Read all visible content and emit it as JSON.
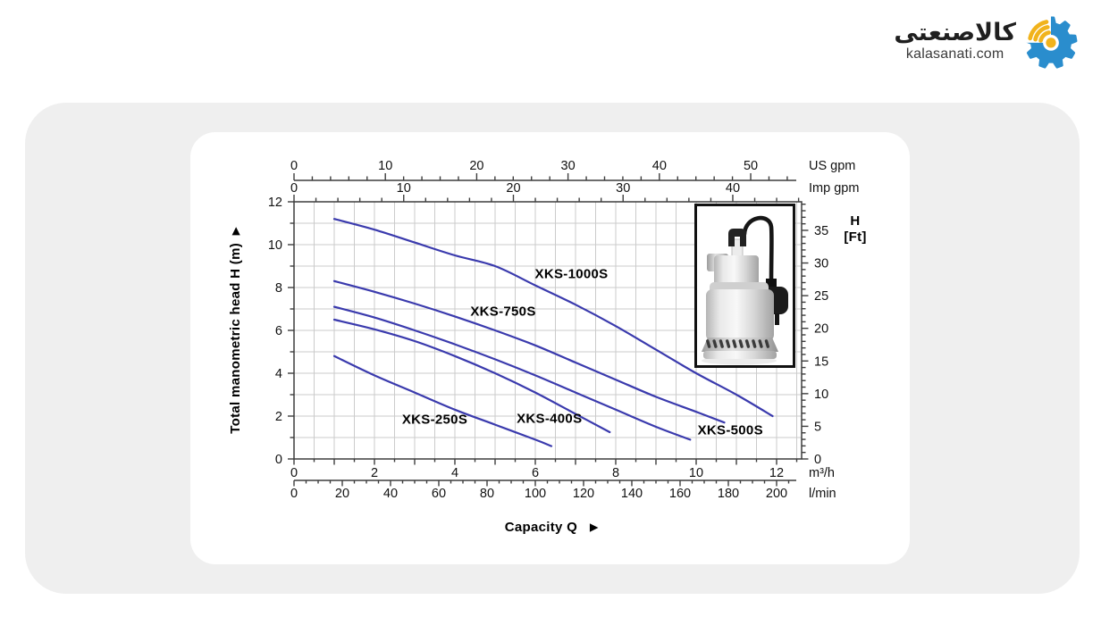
{
  "brand": {
    "name_fa": "کالاصنعتی",
    "domain": "kalasanati.com",
    "colors": {
      "gear_blue": "#2a8dcd",
      "signal_yellow": "#f1b31c"
    }
  },
  "chart_data": {
    "type": "line",
    "x_label": "Capacity Q",
    "y_label": "Total manometric head H (m)",
    "curve_color": "#3a3aad",
    "grid_color": "#cbcbcb",
    "axis_color": "#3d3d3d",
    "axes": {
      "m3h": {
        "unit": "m³/h",
        "label_ticks": [
          0,
          2,
          4,
          6,
          8,
          10,
          12
        ],
        "minor_step": 0.5,
        "max": 12.5
      },
      "lmin": {
        "unit": "l/min",
        "label_ticks": [
          0,
          20,
          40,
          60,
          80,
          100,
          120,
          140,
          160,
          180,
          200
        ],
        "minor_step": 5,
        "max": 205,
        "per_m3h": 16.6667
      },
      "usgpm": {
        "unit": "US gpm",
        "label_ticks": [
          0,
          10,
          20,
          30,
          40,
          50
        ],
        "minor_step": 2,
        "max": 54,
        "per_m3h": 4.4029
      },
      "impgpm": {
        "unit": "Imp gpm",
        "label_ticks": [
          0,
          10,
          20,
          30,
          40
        ],
        "minor_step": 2,
        "max": 46,
        "per_m3h": 3.6662
      },
      "head_m": {
        "unit": "",
        "label_ticks": [
          0,
          2,
          4,
          6,
          8,
          10,
          12
        ],
        "minor_step": 1,
        "max": 12
      },
      "head_ft": {
        "unit_line1": "H",
        "unit_line2": "[Ft]",
        "label_ticks": [
          0,
          5,
          10,
          15,
          20,
          25,
          30,
          35
        ],
        "minor_step": 1,
        "max": 39,
        "per_m": 3.2808
      }
    },
    "series": [
      {
        "name": "XKS-1000S",
        "label_at": [
          6.9,
          8.65
        ],
        "points": [
          [
            1,
            11.2
          ],
          [
            2,
            10.7
          ],
          [
            3,
            10.1
          ],
          [
            4,
            9.5
          ],
          [
            5,
            9.0
          ],
          [
            6,
            8.1
          ],
          [
            7,
            7.2
          ],
          [
            8,
            6.2
          ],
          [
            9,
            5.1
          ],
          [
            10,
            4.0
          ],
          [
            11,
            3.0
          ],
          [
            11.9,
            2.0
          ]
        ]
      },
      {
        "name": "XKS-750S",
        "label_at": [
          5.2,
          6.9
        ],
        "points": [
          [
            1,
            8.3
          ],
          [
            2,
            7.8
          ],
          [
            3,
            7.25
          ],
          [
            4,
            6.65
          ],
          [
            5,
            6.0
          ],
          [
            6,
            5.3
          ],
          [
            7,
            4.5
          ],
          [
            8,
            3.7
          ],
          [
            9,
            2.9
          ],
          [
            10,
            2.2
          ],
          [
            10.7,
            1.7
          ]
        ]
      },
      {
        "name": "XKS-500S",
        "label_at": [
          10.85,
          1.35
        ],
        "points": [
          [
            1,
            7.1
          ],
          [
            2,
            6.6
          ],
          [
            3,
            6.0
          ],
          [
            4,
            5.35
          ],
          [
            5,
            4.65
          ],
          [
            6,
            3.9
          ],
          [
            7,
            3.1
          ],
          [
            8,
            2.3
          ],
          [
            9,
            1.5
          ],
          [
            9.85,
            0.9
          ]
        ]
      },
      {
        "name": "XKS-400S",
        "label_at": [
          6.35,
          1.9
        ],
        "points": [
          [
            1,
            6.5
          ],
          [
            2,
            6.05
          ],
          [
            3,
            5.5
          ],
          [
            4,
            4.8
          ],
          [
            5,
            4.0
          ],
          [
            6,
            3.1
          ],
          [
            7,
            2.1
          ],
          [
            7.85,
            1.25
          ]
        ]
      },
      {
        "name": "XKS-250S",
        "label_at": [
          3.5,
          1.85
        ],
        "points": [
          [
            1,
            4.8
          ],
          [
            2,
            3.9
          ],
          [
            3,
            3.1
          ],
          [
            4,
            2.3
          ],
          [
            5,
            1.6
          ],
          [
            6,
            0.9
          ],
          [
            6.4,
            0.6
          ]
        ]
      }
    ]
  }
}
